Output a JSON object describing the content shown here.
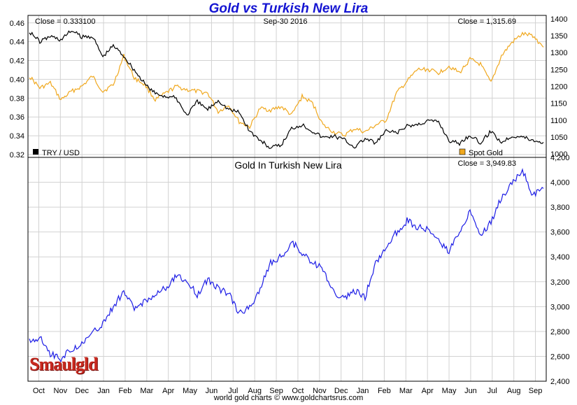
{
  "title": "Gold vs Turkish New Lira",
  "footer": "world gold charts © www.goldchartsrus.com",
  "logo_text": "Smaulgld",
  "colors": {
    "title": "#1414d2",
    "try_line": "#000000",
    "gold_line": "#f0a81e",
    "lira_gold_line": "#1e1ee6",
    "grid": "#d2d2d2"
  },
  "chart_data": [
    {
      "type": "line",
      "title": "",
      "date_label": "Sep-30  2016",
      "x_ticks": [
        "Oct",
        "Nov",
        "Dec",
        "Jan",
        "Feb",
        "Mar",
        "Apr",
        "May",
        "Jun",
        "Jul",
        "Aug",
        "Sep",
        "Oct",
        "Nov",
        "Dec",
        "Jan",
        "Feb",
        "Mar",
        "Apr",
        "May",
        "Jun",
        "Jul",
        "Aug",
        "Sep"
      ],
      "left_axis": {
        "ticks": [
          "0.46",
          "0.44",
          "0.42",
          "0.40",
          "0.38",
          "0.36",
          "0.34",
          "0.32"
        ],
        "ylim": [
          0.317,
          0.468
        ]
      },
      "right_axis": {
        "ticks": [
          "1400",
          "1350",
          "1300",
          "1250",
          "1200",
          "1150",
          "1100",
          "1050",
          "1000"
        ],
        "ylim": [
          990,
          1410
        ]
      },
      "grid": true,
      "series": [
        {
          "name": "TRY / USD",
          "axis": "left",
          "close_label": "Close = 0.333100",
          "values": [
            0.451,
            0.44,
            0.446,
            0.442,
            0.452,
            0.445,
            0.446,
            0.424,
            0.436,
            0.425,
            0.41,
            0.395,
            0.385,
            0.382,
            0.38,
            0.362,
            0.376,
            0.368,
            0.378,
            0.368,
            0.365,
            0.345,
            0.335,
            0.327,
            0.33,
            0.348,
            0.352,
            0.345,
            0.338,
            0.34,
            0.336,
            0.328,
            0.337,
            0.332,
            0.345,
            0.343,
            0.35,
            0.352,
            0.356,
            0.355,
            0.335,
            0.332,
            0.341,
            0.332,
            0.345,
            0.333,
            0.34,
            0.339,
            0.335,
            0.333
          ]
        },
        {
          "name": "Spot Gold",
          "axis": "right",
          "close_label": "Close = 1,315.69",
          "values": [
            1230,
            1195,
            1210,
            1160,
            1185,
            1200,
            1230,
            1185,
            1205,
            1290,
            1225,
            1205,
            1160,
            1180,
            1200,
            1190,
            1185,
            1180,
            1125,
            1145,
            1095,
            1080,
            1135,
            1130,
            1140,
            1115,
            1170,
            1150,
            1085,
            1065,
            1055,
            1075,
            1065,
            1085,
            1100,
            1180,
            1215,
            1250,
            1250,
            1240,
            1260,
            1240,
            1280,
            1265,
            1210,
            1290,
            1330,
            1355,
            1350,
            1316
          ]
        }
      ]
    },
    {
      "type": "line",
      "title": "Gold In Turkish New Lira",
      "x_ticks": [
        "Oct",
        "Nov",
        "Dec",
        "Jan",
        "Feb",
        "Mar",
        "Apr",
        "May",
        "Jun",
        "Jul",
        "Aug",
        "Sep",
        "Oct",
        "Nov",
        "Dec",
        "Jan",
        "Feb",
        "Mar",
        "Apr",
        "May",
        "Jun",
        "Jul",
        "Aug",
        "Sep"
      ],
      "y_ticks": [
        "4,200",
        "4,000",
        "3,800",
        "3,600",
        "3,400",
        "3,200",
        "3,000",
        "2,800",
        "2,600",
        "2,400"
      ],
      "ylim": [
        2400,
        4200
      ],
      "grid": true,
      "series": [
        {
          "name": "",
          "close_label": "Close = 3,949.83",
          "values": [
            2720,
            2760,
            2620,
            2580,
            2660,
            2700,
            2780,
            2860,
            3000,
            3120,
            2980,
            3050,
            3100,
            3150,
            3250,
            3200,
            3100,
            3220,
            3150,
            3100,
            2950,
            2990,
            3150,
            3350,
            3400,
            3520,
            3430,
            3360,
            3300,
            3110,
            3060,
            3120,
            3080,
            3350,
            3480,
            3600,
            3690,
            3640,
            3620,
            3520,
            3440,
            3600,
            3780,
            3580,
            3680,
            3880,
            3990,
            4100,
            3900,
            3950
          ]
        }
      ]
    }
  ]
}
